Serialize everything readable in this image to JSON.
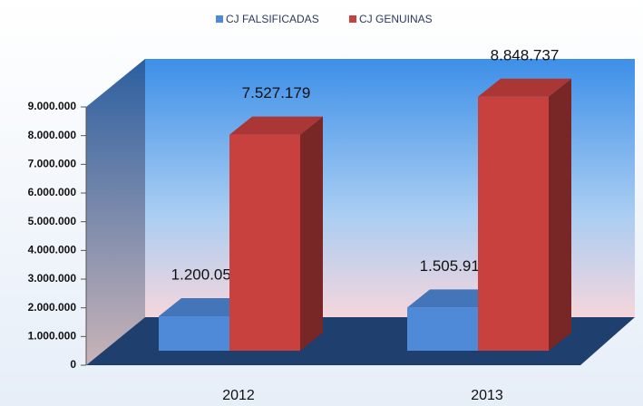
{
  "chart_data": {
    "type": "bar3d",
    "categories": [
      "2012",
      "2013"
    ],
    "series": [
      {
        "name": "CJ FALSIFICADAS",
        "color": "#4f8ad8",
        "values": [
          1200050,
          1505918
        ],
        "value_labels": [
          "1.200.050",
          "1.505.918"
        ]
      },
      {
        "name": "CJ GENUINAS",
        "color": "#c8413f",
        "values": [
          7527179,
          8848737
        ],
        "value_labels": [
          "7.527.179",
          "8.848.737"
        ]
      }
    ],
    "ylim": [
      0,
      9000000
    ],
    "yticks": [
      0,
      {
        "value": 1000000,
        "label": "1.000.000"
      },
      {
        "value": 2000000,
        "label": "2.000.000"
      },
      {
        "value": 3000000,
        "label": "3.000.000"
      },
      {
        "value": 4000000,
        "label": "4.000.000"
      },
      {
        "value": 5000000,
        "label": "5.000.000"
      },
      {
        "value": 6000000,
        "label": "6.000.000"
      },
      {
        "value": 7000000,
        "label": "7.000.000"
      },
      {
        "value": 8000000,
        "label": "8.000.000"
      },
      {
        "value": 9000000,
        "label": "9.000.000"
      }
    ],
    "legend": "top"
  }
}
